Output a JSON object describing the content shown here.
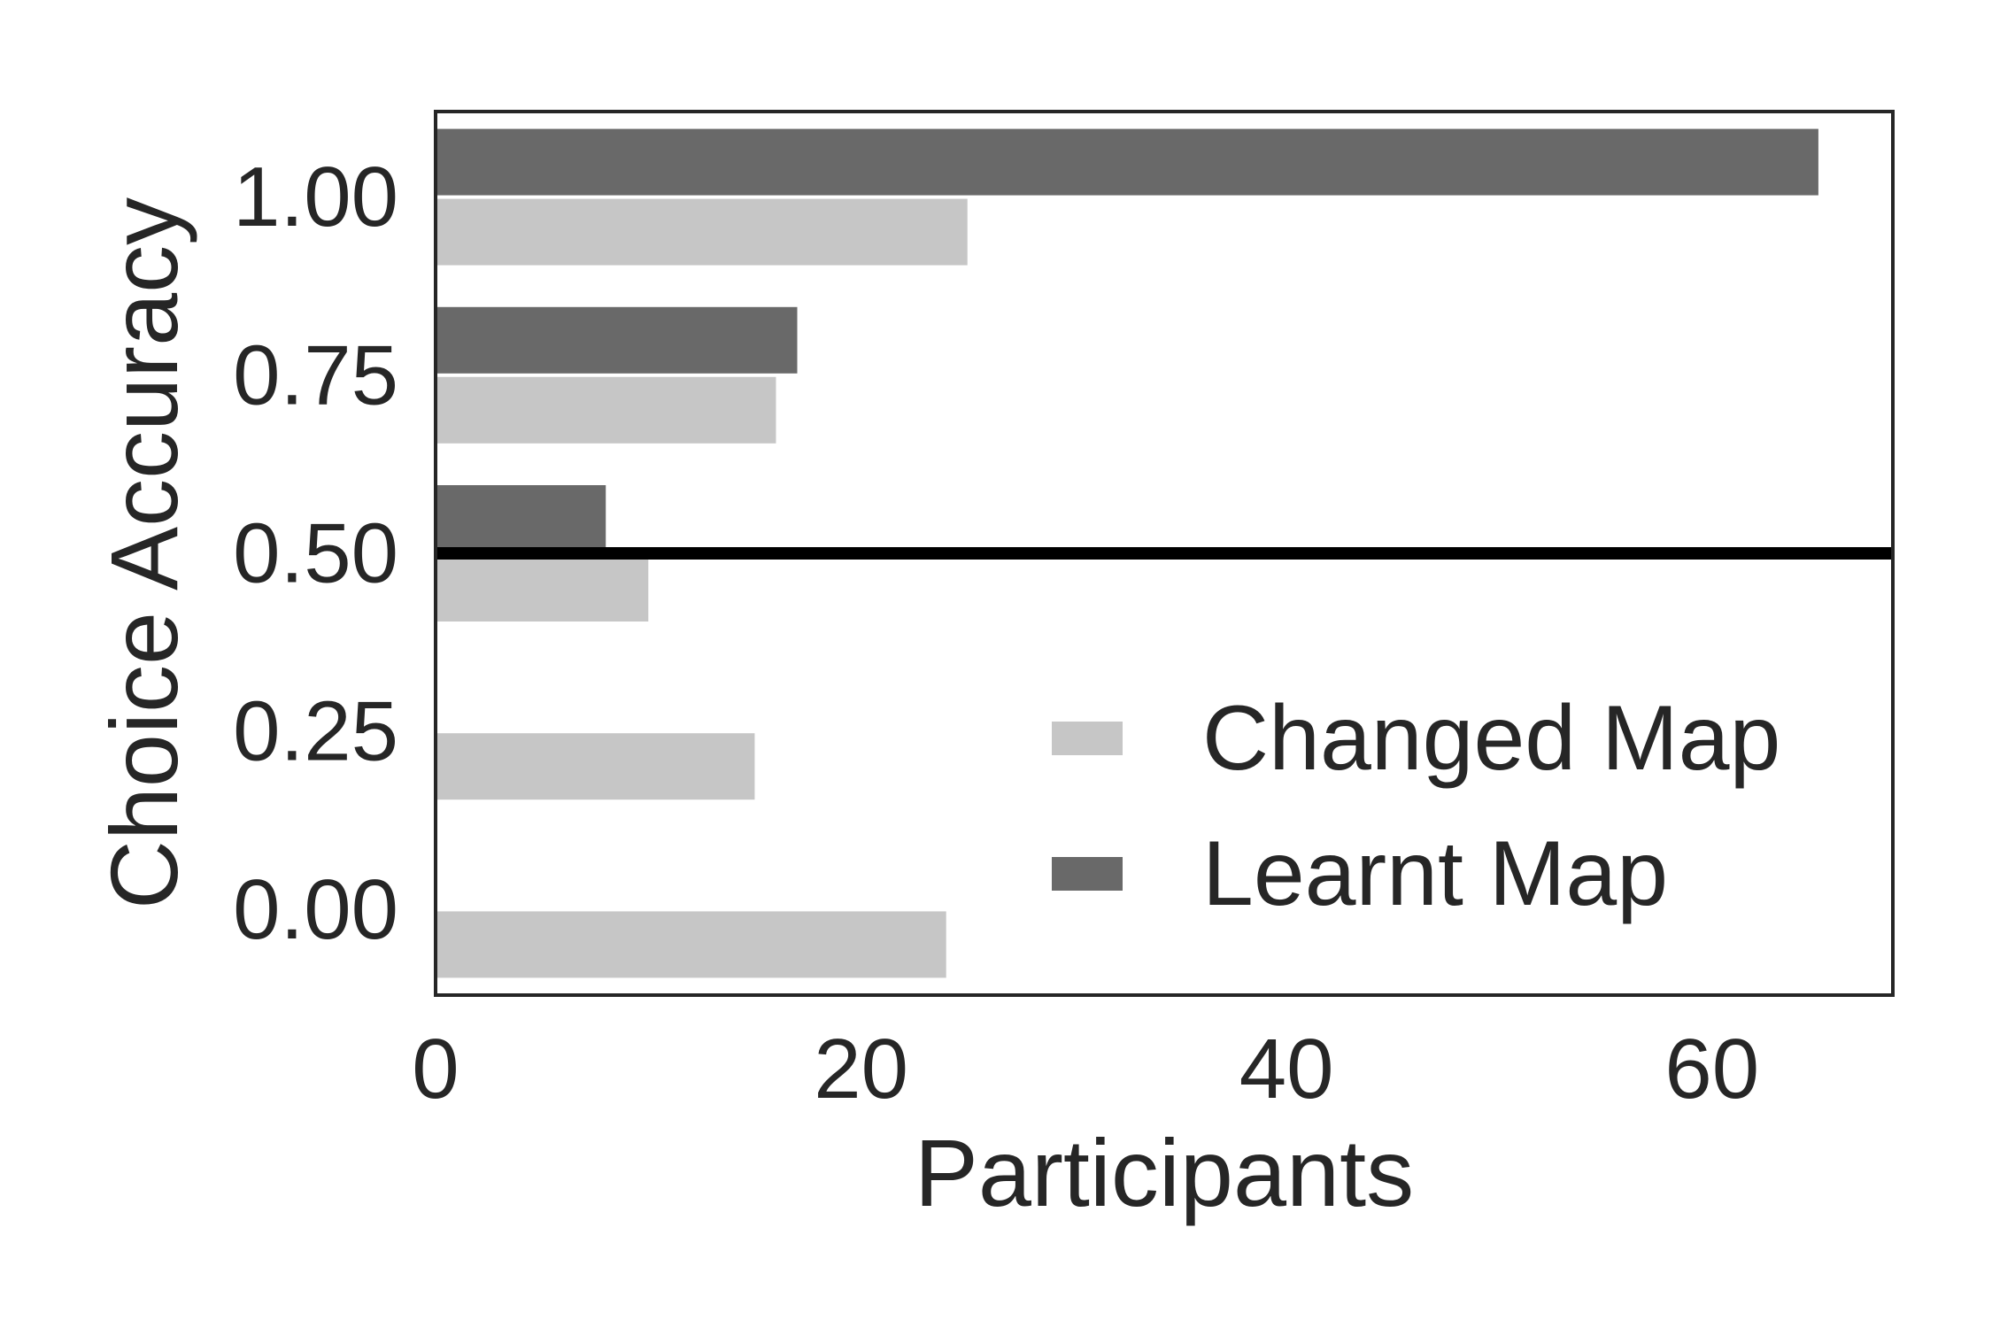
{
  "chart_data": {
    "type": "bar",
    "orientation": "horizontal",
    "categories": [
      "0.00",
      "0.25",
      "0.50",
      "0.75",
      "1.00"
    ],
    "series": [
      {
        "name": "Changed Map",
        "color": "#c6c6c6",
        "values": [
          24,
          15,
          10,
          16,
          25
        ]
      },
      {
        "name": "Learnt Map",
        "color": "#696969",
        "values": [
          0,
          0,
          8,
          17,
          65
        ]
      }
    ],
    "xlabel": "Participants",
    "ylabel": "Choice Accuracy",
    "xlim": [
      0,
      68.5
    ],
    "ylim": [
      -0.12,
      1.12
    ],
    "xticks": [
      0,
      20,
      40,
      60
    ],
    "xtick_labels": [
      "0",
      "20",
      "40",
      "60"
    ],
    "yticks": [
      0,
      0.25,
      0.5,
      0.75,
      1.0
    ],
    "ytick_labels": [
      "0.00",
      "0.25",
      "0.50",
      "0.75",
      "1.00"
    ],
    "reference_line": {
      "axis": "y",
      "value": 0.5,
      "color": "#000000"
    },
    "grid": false,
    "legend": {
      "position": "lower-right"
    }
  }
}
